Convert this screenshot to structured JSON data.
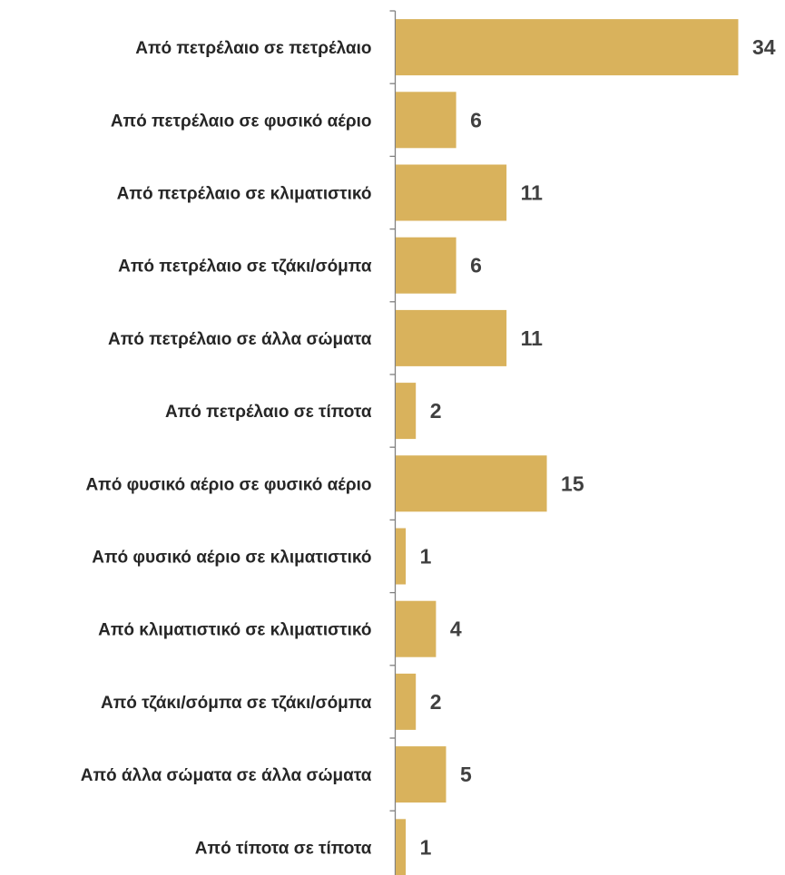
{
  "chart_data": {
    "type": "bar",
    "orientation": "horizontal",
    "categories": [
      "Από πετρέλαιο σε πετρέλαιο",
      "Από πετρέλαιο σε φυσικό αέριο",
      "Από πετρέλαιο σε κλιματιστικό",
      "Από πετρέλαιο σε τζάκι/σόμπα",
      "Από πετρέλαιο σε άλλα σώματα",
      "Από πετρέλαιο σε τίποτα",
      "Από φυσικό αέριο σε φυσικό αέριο",
      "Από φυσικό αέριο σε κλιματιστικό",
      "Από κλιματιστικό σε κλιματιστικό",
      "Από τζάκι/σόμπα σε τζάκι/σόμπα",
      "Από άλλα σώματα σε άλλα σώματα",
      "Από τίποτα σε τίποτα"
    ],
    "values": [
      34,
      6,
      11,
      6,
      11,
      2,
      15,
      1,
      4,
      2,
      5,
      1
    ],
    "value_labels": [
      "34",
      "6",
      "11",
      "6",
      "11",
      "2",
      "15",
      "1",
      "4",
      "2",
      "5",
      "1"
    ],
    "xlim": [
      0,
      34
    ],
    "grid": false,
    "legend": "none",
    "colors": {
      "bar": "#D9B25C",
      "axis": "#808080",
      "category_text": "#262626",
      "value_text": "#404040"
    }
  }
}
